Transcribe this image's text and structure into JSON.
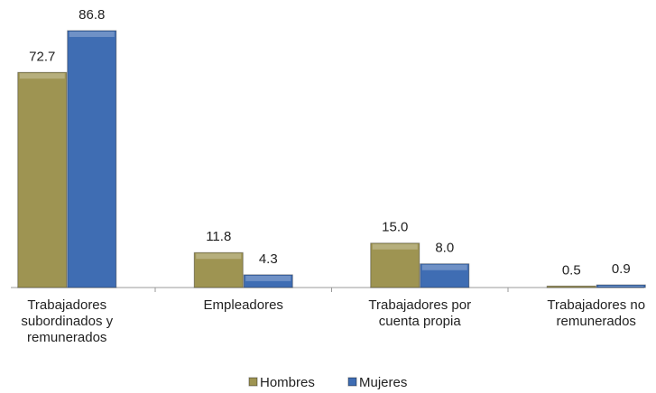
{
  "chart_data": {
    "type": "bar",
    "categories": [
      "Trabajadores subordinados y remunerados",
      "Empleadores",
      "Trabajadores por cuenta propia",
      "Trabajadores no remunerados"
    ],
    "series": [
      {
        "name": "Hombres",
        "color": "#9e9452",
        "values": [
          72.7,
          11.8,
          15.0,
          0.5
        ],
        "value_labels": [
          "72.7",
          "11.8",
          "15.0",
          "0.5"
        ]
      },
      {
        "name": "Mujeres",
        "color": "#3f6db3",
        "values": [
          86.8,
          4.3,
          8.0,
          0.9
        ],
        "value_labels": [
          "86.8",
          "4.3",
          "8.0",
          "0.9"
        ]
      }
    ],
    "ylim": [
      0,
      90
    ],
    "legend": "bottom"
  }
}
